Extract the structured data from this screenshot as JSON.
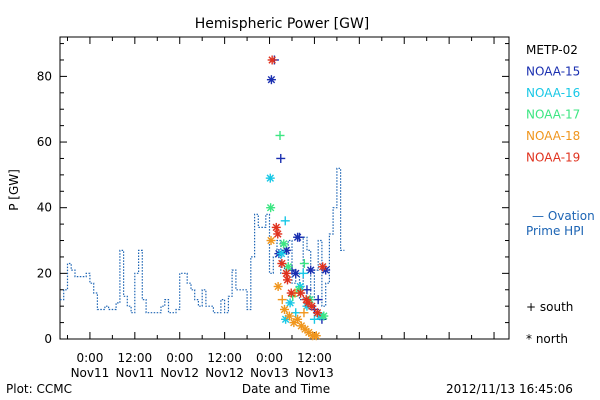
{
  "chart_data": {
    "type": "scatter",
    "title": "Hemispheric Power [GW]",
    "xlabel": "Date and Time",
    "ylabel": "P [GW]",
    "xlim": [
      -8,
      112
    ],
    "ylim": [
      0,
      92
    ],
    "y_ticks": [
      0,
      20,
      40,
      60,
      80
    ],
    "x_ticks": [
      {
        "x": 0,
        "time": "0:00",
        "date": "Nov11"
      },
      {
        "x": 12,
        "time": "12:00",
        "date": "Nov11"
      },
      {
        "x": 24,
        "time": "0:00",
        "date": "Nov12"
      },
      {
        "x": 36,
        "time": "12:00",
        "date": "Nov12"
      },
      {
        "x": 48,
        "time": "0:00",
        "date": "Nov13"
      },
      {
        "x": 60,
        "time": "12:00",
        "date": "Nov13"
      }
    ],
    "x_units": "hours since 2012-11-11 00:00 UT",
    "line_series": {
      "name": "Ovation Prime HPI",
      "color": "#1c64b4",
      "points": [
        [
          -8,
          12
        ],
        [
          -7,
          12
        ],
        [
          -7,
          15
        ],
        [
          -6,
          15
        ],
        [
          -6,
          23
        ],
        [
          -5,
          23
        ],
        [
          -5,
          21
        ],
        [
          -4,
          21
        ],
        [
          -4,
          19
        ],
        [
          -1,
          19
        ],
        [
          -1,
          20
        ],
        [
          0,
          20
        ],
        [
          0,
          17
        ],
        [
          1,
          17
        ],
        [
          1,
          14
        ],
        [
          2,
          14
        ],
        [
          2,
          9
        ],
        [
          4,
          9
        ],
        [
          4,
          10
        ],
        [
          5,
          10
        ],
        [
          5,
          9
        ],
        [
          7,
          9
        ],
        [
          7,
          11
        ],
        [
          8,
          11
        ],
        [
          8,
          27
        ],
        [
          9,
          27
        ],
        [
          9,
          13
        ],
        [
          10,
          13
        ],
        [
          10,
          10
        ],
        [
          11,
          10
        ],
        [
          11,
          8
        ],
        [
          12,
          8
        ],
        [
          12,
          20
        ],
        [
          13,
          20
        ],
        [
          13,
          27
        ],
        [
          14,
          27
        ],
        [
          14,
          12
        ],
        [
          15,
          12
        ],
        [
          15,
          8
        ],
        [
          19,
          8
        ],
        [
          19,
          10
        ],
        [
          20,
          10
        ],
        [
          20,
          12
        ],
        [
          21,
          12
        ],
        [
          21,
          8
        ],
        [
          23,
          8
        ],
        [
          23,
          9
        ],
        [
          24,
          9
        ],
        [
          24,
          20
        ],
        [
          26,
          20
        ],
        [
          26,
          17
        ],
        [
          27,
          17
        ],
        [
          27,
          15
        ],
        [
          28,
          15
        ],
        [
          28,
          12
        ],
        [
          29,
          12
        ],
        [
          29,
          10
        ],
        [
          30,
          10
        ],
        [
          30,
          15
        ],
        [
          31,
          15
        ],
        [
          31,
          10
        ],
        [
          33,
          10
        ],
        [
          33,
          8
        ],
        [
          35,
          8
        ],
        [
          35,
          12
        ],
        [
          36,
          12
        ],
        [
          36,
          8
        ],
        [
          37,
          8
        ],
        [
          37,
          13
        ],
        [
          38,
          13
        ],
        [
          38,
          21
        ],
        [
          39,
          21
        ],
        [
          39,
          15
        ],
        [
          42,
          15
        ],
        [
          42,
          9
        ],
        [
          43,
          9
        ],
        [
          43,
          25
        ],
        [
          44,
          25
        ],
        [
          44,
          38
        ],
        [
          45,
          38
        ],
        [
          45,
          34
        ],
        [
          47,
          34
        ],
        [
          47,
          38
        ],
        [
          48,
          38
        ],
        [
          48,
          20
        ],
        [
          49,
          20
        ],
        [
          49,
          25
        ],
        [
          50,
          25
        ],
        [
          50,
          30
        ],
        [
          51,
          30
        ],
        [
          51,
          20
        ],
        [
          52,
          20
        ],
        [
          52,
          22
        ],
        [
          53,
          22
        ],
        [
          53,
          30
        ],
        [
          54,
          30
        ],
        [
          54,
          17
        ],
        [
          55,
          17
        ],
        [
          55,
          20
        ],
        [
          56,
          20
        ],
        [
          56,
          12
        ],
        [
          57,
          12
        ],
        [
          57,
          31
        ],
        [
          58,
          31
        ],
        [
          58,
          27
        ],
        [
          59,
          27
        ],
        [
          59,
          12
        ],
        [
          60,
          12
        ],
        [
          60,
          21
        ],
        [
          61,
          21
        ],
        [
          61,
          30
        ],
        [
          62,
          30
        ],
        [
          62,
          10
        ],
        [
          63,
          10
        ],
        [
          63,
          17
        ],
        [
          64,
          17
        ],
        [
          64,
          32
        ],
        [
          65,
          32
        ],
        [
          65,
          40
        ],
        [
          66,
          40
        ],
        [
          66,
          52
        ],
        [
          67,
          52
        ],
        [
          67,
          27
        ],
        [
          68,
          27
        ]
      ]
    },
    "satellites": [
      {
        "name": "METP-02",
        "color": "#000000"
      },
      {
        "name": "NOAA-15",
        "color": "#1a2fb0",
        "points": [
          {
            "x": 48.5,
            "y": 79,
            "m": "north"
          },
          {
            "x": 49.3,
            "y": 85,
            "m": "south"
          },
          {
            "x": 51,
            "y": 55,
            "m": "south"
          },
          {
            "x": 52.5,
            "y": 27,
            "m": "north"
          },
          {
            "x": 54,
            "y": 21,
            "m": "south"
          },
          {
            "x": 55.5,
            "y": 31,
            "m": "north"
          },
          {
            "x": 56,
            "y": 31,
            "m": "south"
          },
          {
            "x": 58,
            "y": 15,
            "m": "south"
          },
          {
            "x": 59,
            "y": 21,
            "m": "north"
          },
          {
            "x": 60,
            "y": 9,
            "m": "south"
          },
          {
            "x": 61,
            "y": 12,
            "m": "south"
          },
          {
            "x": 62,
            "y": 6,
            "m": "south"
          },
          {
            "x": 63,
            "y": 21,
            "m": "north"
          },
          {
            "x": 50.5,
            "y": 26,
            "m": "north"
          },
          {
            "x": 55,
            "y": 20,
            "m": "north"
          }
        ]
      },
      {
        "name": "NOAA-16",
        "color": "#19c8e6",
        "points": [
          {
            "x": 48.2,
            "y": 49,
            "m": "north"
          },
          {
            "x": 52.2,
            "y": 36,
            "m": "south"
          },
          {
            "x": 51.2,
            "y": 26,
            "m": "north"
          },
          {
            "x": 57,
            "y": 20,
            "m": "south"
          },
          {
            "x": 53.5,
            "y": 11,
            "m": "north"
          },
          {
            "x": 55,
            "y": 8,
            "m": "south"
          },
          {
            "x": 52.3,
            "y": 6,
            "m": "north"
          },
          {
            "x": 58,
            "y": 10,
            "m": "north"
          },
          {
            "x": 60,
            "y": 6,
            "m": "south"
          },
          {
            "x": 61.5,
            "y": 7,
            "m": "north"
          },
          {
            "x": 56.2,
            "y": 16,
            "m": "north"
          }
        ]
      },
      {
        "name": "NOAA-17",
        "color": "#3ce682",
        "points": [
          {
            "x": 48.3,
            "y": 40,
            "m": "north"
          },
          {
            "x": 50.8,
            "y": 62,
            "m": "south"
          },
          {
            "x": 51.8,
            "y": 29,
            "m": "north"
          },
          {
            "x": 53,
            "y": 22,
            "m": "north"
          },
          {
            "x": 55.8,
            "y": 15,
            "m": "north"
          },
          {
            "x": 57.3,
            "y": 23,
            "m": "south"
          },
          {
            "x": 58.8,
            "y": 12,
            "m": "north"
          },
          {
            "x": 62.5,
            "y": 7,
            "m": "north"
          },
          {
            "x": 54.2,
            "y": 13,
            "m": "south"
          }
        ]
      },
      {
        "name": "NOAA-18",
        "color": "#f0961e",
        "points": [
          {
            "x": 48.4,
            "y": 30,
            "m": "north"
          },
          {
            "x": 50.3,
            "y": 16,
            "m": "north"
          },
          {
            "x": 51.4,
            "y": 12,
            "m": "south"
          },
          {
            "x": 52,
            "y": 9,
            "m": "north"
          },
          {
            "x": 53.3,
            "y": 7,
            "m": "north"
          },
          {
            "x": 54.5,
            "y": 5,
            "m": "north"
          },
          {
            "x": 55.5,
            "y": 6,
            "m": "north"
          },
          {
            "x": 56.5,
            "y": 4,
            "m": "north"
          },
          {
            "x": 57.5,
            "y": 3,
            "m": "north"
          },
          {
            "x": 58.5,
            "y": 2,
            "m": "north"
          },
          {
            "x": 59.5,
            "y": 1,
            "m": "north"
          },
          {
            "x": 60.5,
            "y": 1,
            "m": "north"
          },
          {
            "x": 54.8,
            "y": 14,
            "m": "south"
          },
          {
            "x": 57.2,
            "y": 8,
            "m": "south"
          }
        ]
      },
      {
        "name": "NOAA-19",
        "color": "#e0321e",
        "points": [
          {
            "x": 48.7,
            "y": 85,
            "m": "north"
          },
          {
            "x": 49.8,
            "y": 34,
            "m": "north"
          },
          {
            "x": 50.2,
            "y": 32,
            "m": "north"
          },
          {
            "x": 51.3,
            "y": 23,
            "m": "north"
          },
          {
            "x": 52.8,
            "y": 18,
            "m": "north"
          },
          {
            "x": 53.8,
            "y": 14,
            "m": "north"
          },
          {
            "x": 56.3,
            "y": 14,
            "m": "north"
          },
          {
            "x": 57.8,
            "y": 12,
            "m": "north"
          },
          {
            "x": 58.3,
            "y": 11,
            "m": "north"
          },
          {
            "x": 59.3,
            "y": 10,
            "m": "north"
          },
          {
            "x": 60.8,
            "y": 8,
            "m": "north"
          },
          {
            "x": 62.2,
            "y": 22,
            "m": "north"
          },
          {
            "x": 52.5,
            "y": 20,
            "m": "north"
          }
        ]
      }
    ],
    "legend_placement": "right",
    "marker_key": {
      "south": "+ south",
      "north": "* north"
    }
  },
  "labels": {
    "title": "Hemispheric Power [GW]",
    "ylabel": "P [GW]",
    "xlabel": "Date and Time",
    "ovation_line1": "— Ovation",
    "ovation_line2": "Prime HPI",
    "south_key": "+ south",
    "north_key": "* north",
    "plot_credit": "Plot: CCMC",
    "timestamp": "2012/11/13 16:45:06"
  }
}
